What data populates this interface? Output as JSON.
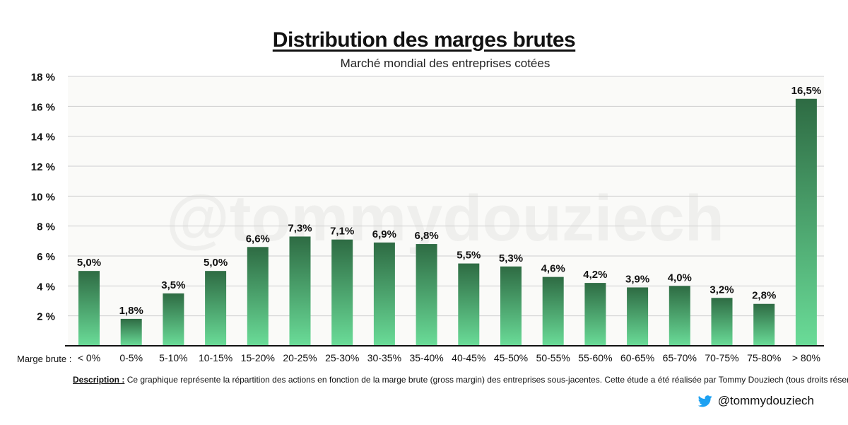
{
  "title": "Distribution des marges brutes",
  "subtitle": "Marché mondial des entreprises cotées",
  "x_axis_prefix": "Marge brute :",
  "watermark": "@tommydouziech",
  "description": {
    "label": "Description :",
    "text": "Ce graphique représente la répartition des actions en fonction de la marge brute (gross margin) des entreprises sous-jacentes. Cette étude a été réalisée par Tommy Douziech (tous droits réservés)."
  },
  "footer": {
    "handle": "@tommydouziech",
    "icon": "twitter-bird-icon"
  },
  "colors": {
    "bar_top": "#2e6b43",
    "bar_bottom": "#6adc98",
    "grid": "#cfcfcf",
    "plot_bg": "#fafaf8"
  },
  "chart_data": {
    "type": "bar",
    "title": "Distribution des marges brutes",
    "subtitle": "Marché mondial des entreprises cotées",
    "xlabel": "Marge brute :",
    "ylabel": "",
    "ylim": [
      0,
      18
    ],
    "yticks": [
      2,
      4,
      6,
      8,
      10,
      12,
      14,
      16,
      18
    ],
    "ytick_labels": [
      "2 %",
      "4 %",
      "6 %",
      "8 %",
      "10 %",
      "12 %",
      "14 %",
      "16 %",
      "18 %"
    ],
    "grid": true,
    "categories": [
      "< 0%",
      "0-5%",
      "5-10%",
      "10-15%",
      "15-20%",
      "20-25%",
      "25-30%",
      "30-35%",
      "35-40%",
      "40-45%",
      "45-50%",
      "50-55%",
      "55-60%",
      "60-65%",
      "65-70%",
      "70-75%",
      "75-80%",
      "> 80%"
    ],
    "values": [
      5.0,
      1.8,
      3.5,
      5.0,
      6.6,
      7.3,
      7.1,
      6.9,
      6.8,
      5.5,
      5.3,
      4.6,
      4.2,
      3.9,
      4.0,
      3.2,
      2.8,
      16.5
    ],
    "data_labels": [
      "5,0%",
      "1,8%",
      "3,5%",
      "5,0%",
      "6,6%",
      "7,3%",
      "7,1%",
      "6,9%",
      "6,8%",
      "5,5%",
      "5,3%",
      "4,6%",
      "4,2%",
      "3,9%",
      "4,0%",
      "3,2%",
      "2,8%",
      "16,5%"
    ]
  }
}
